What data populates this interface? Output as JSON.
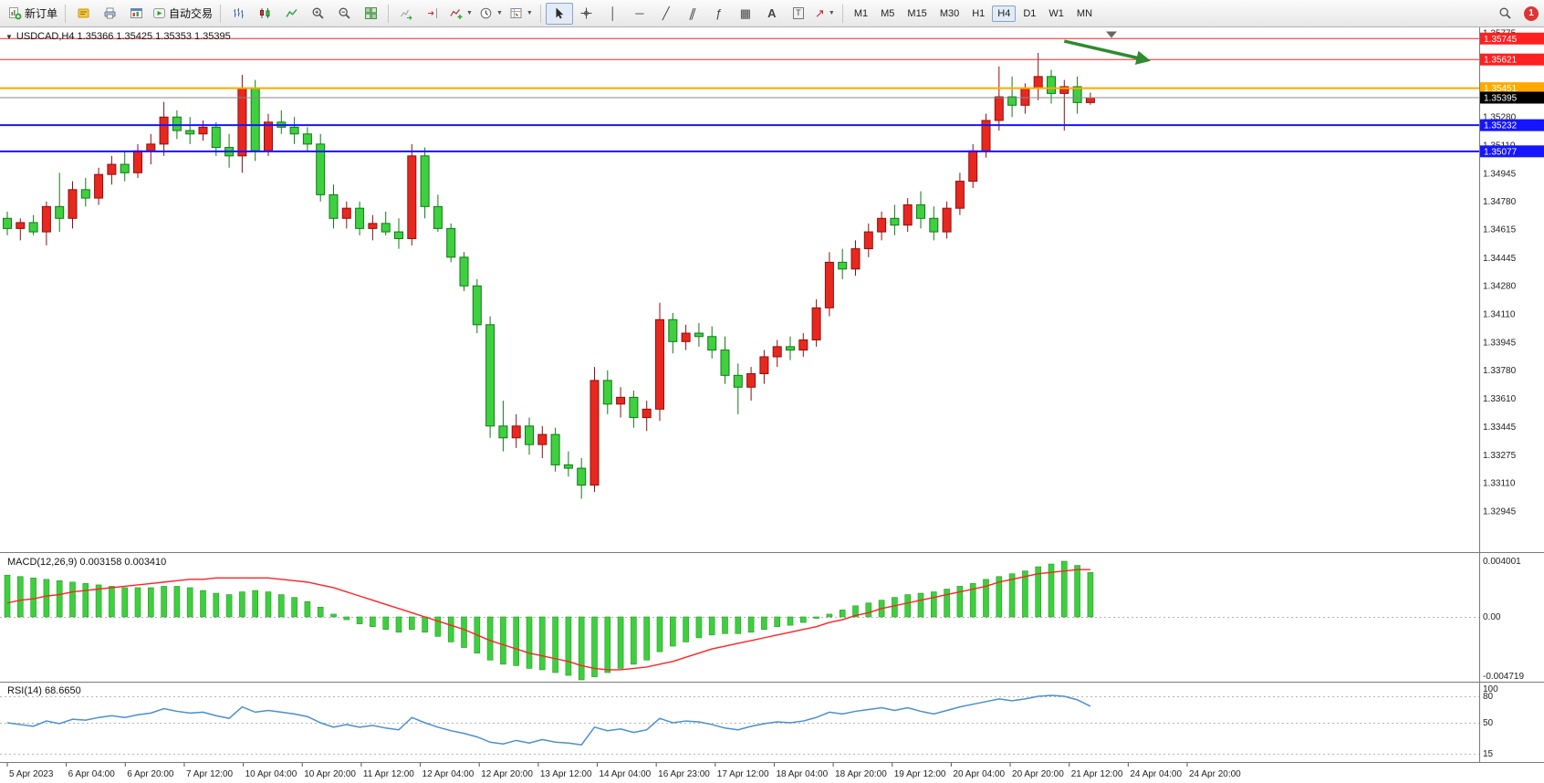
{
  "toolbar": {
    "new_order": "新订单",
    "auto_trading": "自动交易",
    "timeframes": [
      "M1",
      "M5",
      "M15",
      "M30",
      "H1",
      "H4",
      "D1",
      "W1",
      "MN"
    ],
    "active_timeframe": "H4",
    "badge_count": "1"
  },
  "chart": {
    "symbol_line": "USDCAD,H4 1.35366 1.35425 1.35353 1.35395",
    "macd_label": "MACD(12,26,9) 0.003158 0.003410",
    "rsi_label": "RSI(14) 68.6650"
  },
  "chart_data": [
    {
      "type": "candlestick",
      "symbol": "USDCAD",
      "timeframe": "H4",
      "current_bar": {
        "open": 1.35366,
        "high": 1.35425,
        "low": 1.35353,
        "close": 1.35395
      },
      "bid": 1.35395,
      "ylim": [
        1.327,
        1.35795
      ],
      "up_color": "#e8281e",
      "up_stroke": "#8f0f0f",
      "down_color": "#3fd03f",
      "down_stroke": "#0f7a16",
      "ohlc": [
        [
          1.3468,
          1.3472,
          1.3458,
          1.3462
        ],
        [
          1.3462,
          1.3468,
          1.3455,
          1.34655
        ],
        [
          1.34655,
          1.347,
          1.3458,
          1.346
        ],
        [
          1.346,
          1.3478,
          1.3452,
          1.3475
        ],
        [
          1.3475,
          1.3495,
          1.346,
          1.3468
        ],
        [
          1.3468,
          1.349,
          1.3462,
          1.3485
        ],
        [
          1.3485,
          1.3492,
          1.3475,
          1.348
        ],
        [
          1.348,
          1.3498,
          1.3476,
          1.3494
        ],
        [
          1.3494,
          1.3505,
          1.3488,
          1.35
        ],
        [
          1.35,
          1.3508,
          1.349,
          1.3495
        ],
        [
          1.3495,
          1.3512,
          1.3492,
          1.3508
        ],
        [
          1.3508,
          1.3518,
          1.35,
          1.3512
        ],
        [
          1.3512,
          1.3537,
          1.3505,
          1.3528
        ],
        [
          1.3528,
          1.3532,
          1.3515,
          1.352
        ],
        [
          1.352,
          1.3528,
          1.3512,
          1.3518
        ],
        [
          1.3518,
          1.3526,
          1.3514,
          1.3522
        ],
        [
          1.3522,
          1.3525,
          1.3505,
          1.351
        ],
        [
          1.351,
          1.3518,
          1.3498,
          1.3505
        ],
        [
          1.3505,
          1.3553,
          1.3495,
          1.3545
        ],
        [
          1.3545,
          1.355,
          1.3502,
          1.3508
        ],
        [
          1.3508,
          1.353,
          1.3505,
          1.3525
        ],
        [
          1.3525,
          1.3532,
          1.3518,
          1.3522
        ],
        [
          1.3522,
          1.3528,
          1.3512,
          1.3518
        ],
        [
          1.3518,
          1.3522,
          1.3508,
          1.3512
        ],
        [
          1.3512,
          1.3518,
          1.3478,
          1.3482
        ],
        [
          1.3482,
          1.3488,
          1.3462,
          1.3468
        ],
        [
          1.3468,
          1.3478,
          1.3462,
          1.3474
        ],
        [
          1.3474,
          1.3478,
          1.3458,
          1.3462
        ],
        [
          1.3462,
          1.347,
          1.3455,
          1.3465
        ],
        [
          1.3465,
          1.3472,
          1.3458,
          1.346
        ],
        [
          1.346,
          1.3468,
          1.345,
          1.3456
        ],
        [
          1.3456,
          1.3512,
          1.3452,
          1.3505
        ],
        [
          1.3505,
          1.351,
          1.3468,
          1.3475
        ],
        [
          1.3475,
          1.3482,
          1.346,
          1.3462
        ],
        [
          1.3462,
          1.3465,
          1.3442,
          1.3445
        ],
        [
          1.3445,
          1.3448,
          1.3425,
          1.3428
        ],
        [
          1.3428,
          1.3432,
          1.34,
          1.3405
        ],
        [
          1.3405,
          1.341,
          1.3338,
          1.3345
        ],
        [
          1.3345,
          1.336,
          1.333,
          1.3338
        ],
        [
          1.3338,
          1.3352,
          1.3332,
          1.3345
        ],
        [
          1.3345,
          1.335,
          1.3328,
          1.3334
        ],
        [
          1.3334,
          1.3345,
          1.3326,
          1.334
        ],
        [
          1.334,
          1.3344,
          1.3318,
          1.3322
        ],
        [
          1.3322,
          1.333,
          1.3315,
          1.332
        ],
        [
          1.332,
          1.3326,
          1.3302,
          1.331
        ],
        [
          1.331,
          1.338,
          1.3306,
          1.3372
        ],
        [
          1.3372,
          1.3378,
          1.3352,
          1.3358
        ],
        [
          1.3358,
          1.3368,
          1.335,
          1.3362
        ],
        [
          1.3362,
          1.3366,
          1.3344,
          1.335
        ],
        [
          1.335,
          1.336,
          1.3342,
          1.3355
        ],
        [
          1.3355,
          1.3418,
          1.3348,
          1.3408
        ],
        [
          1.3408,
          1.3412,
          1.3388,
          1.3395
        ],
        [
          1.3395,
          1.3405,
          1.339,
          1.34
        ],
        [
          1.34,
          1.3406,
          1.3392,
          1.3398
        ],
        [
          1.3398,
          1.3404,
          1.3385,
          1.339
        ],
        [
          1.339,
          1.3398,
          1.337,
          1.3375
        ],
        [
          1.3375,
          1.3382,
          1.3352,
          1.3368
        ],
        [
          1.3368,
          1.338,
          1.336,
          1.3376
        ],
        [
          1.3376,
          1.339,
          1.337,
          1.3386
        ],
        [
          1.3386,
          1.3396,
          1.338,
          1.3392
        ],
        [
          1.3392,
          1.3398,
          1.3384,
          1.339
        ],
        [
          1.339,
          1.34,
          1.3386,
          1.3396
        ],
        [
          1.3396,
          1.342,
          1.3392,
          1.3415
        ],
        [
          1.3415,
          1.3448,
          1.341,
          1.3442
        ],
        [
          1.3442,
          1.345,
          1.3432,
          1.3438
        ],
        [
          1.3438,
          1.3455,
          1.3434,
          1.345
        ],
        [
          1.345,
          1.3465,
          1.3445,
          1.346
        ],
        [
          1.346,
          1.3472,
          1.3455,
          1.3468
        ],
        [
          1.3468,
          1.3476,
          1.3458,
          1.3464
        ],
        [
          1.3464,
          1.348,
          1.346,
          1.3476
        ],
        [
          1.3476,
          1.3484,
          1.3462,
          1.3468
        ],
        [
          1.3468,
          1.3475,
          1.3455,
          1.346
        ],
        [
          1.346,
          1.3478,
          1.3456,
          1.3474
        ],
        [
          1.3474,
          1.3495,
          1.347,
          1.349
        ],
        [
          1.349,
          1.3512,
          1.3486,
          1.3508
        ],
        [
          1.3508,
          1.353,
          1.3504,
          1.3526
        ],
        [
          1.3526,
          1.3558,
          1.352,
          1.354
        ],
        [
          1.354,
          1.3552,
          1.3528,
          1.3535
        ],
        [
          1.3535,
          1.3548,
          1.353,
          1.3545
        ],
        [
          1.3545,
          1.3566,
          1.3538,
          1.3552
        ],
        [
          1.3552,
          1.3556,
          1.3536,
          1.3542
        ],
        [
          1.3542,
          1.355,
          1.352,
          1.3546
        ],
        [
          1.3546,
          1.3552,
          1.353,
          1.35366
        ],
        [
          1.35366,
          1.35425,
          1.35353,
          1.35395
        ]
      ],
      "price_axis_ticks": [
        1.35775,
        1.3528,
        1.3511,
        1.34945,
        1.3478,
        1.34615,
        1.34445,
        1.3428,
        1.3411,
        1.33945,
        1.3378,
        1.3361,
        1.33445,
        1.33275,
        1.3311,
        1.32945
      ],
      "price_lines": [
        {
          "price": 1.35745,
          "color": "#ff2020",
          "width": 1,
          "label": "1.35745"
        },
        {
          "price": 1.35621,
          "color": "#ff2020",
          "width": 1,
          "label": "1.35621"
        },
        {
          "price": 1.35451,
          "color": "#ffaa00",
          "width": 2,
          "label": "1.35451"
        },
        {
          "price": 1.35232,
          "color": "#1515ff",
          "width": 2,
          "label": "1.35232"
        },
        {
          "price": 1.35077,
          "color": "#1515ff",
          "width": 2,
          "label": "1.35077"
        }
      ],
      "bid_tag_color": "#000000",
      "time_labels": [
        "5 Apr 2023",
        "6 Apr 04:00",
        "6 Apr 20:00",
        "7 Apr 12:00",
        "10 Apr 04:00",
        "10 Apr 20:00",
        "11 Apr 12:00",
        "12 Apr 04:00",
        "12 Apr 20:00",
        "13 Apr 12:00",
        "14 Apr 04:00",
        "16 Apr 23:00",
        "17 Apr 12:00",
        "18 Apr 04:00",
        "18 Apr 20:00",
        "19 Apr 12:00",
        "20 Apr 04:00",
        "20 Apr 20:00",
        "21 Apr 12:00",
        "24 Apr 04:00",
        "24 Apr 20:00"
      ],
      "arrow": {
        "start": {
          "bar": 81,
          "price": 1.3573
        },
        "end": {
          "bar": 87.3,
          "price": 1.35618
        },
        "color": "#2e8b2e"
      }
    },
    {
      "type": "bar",
      "name": "MACD",
      "params": [
        12,
        26,
        9
      ],
      "value_main": 0.003158,
      "value_signal": 0.00341,
      "histogram_color": "#3ecf3e",
      "signal_color": "#ff2222",
      "axis_labels": [
        {
          "value": 0.004001,
          "label": "0.004001"
        },
        {
          "value": 0,
          "label": "0.00"
        },
        {
          "value": -0.004719,
          "label": "-0.004719"
        }
      ],
      "histogram": [
        0.003,
        0.0029,
        0.0028,
        0.0027,
        0.0026,
        0.0025,
        0.0024,
        0.0023,
        0.0022,
        0.0021,
        0.0021,
        0.0021,
        0.0022,
        0.0022,
        0.0021,
        0.0019,
        0.0017,
        0.0016,
        0.0018,
        0.0019,
        0.0018,
        0.0016,
        0.0014,
        0.0011,
        0.0007,
        0.0002,
        -0.0002,
        -0.0005,
        -0.0007,
        -0.0009,
        -0.0011,
        -0.0009,
        -0.0011,
        -0.0014,
        -0.0018,
        -0.0022,
        -0.0026,
        -0.0031,
        -0.0034,
        -0.0035,
        -0.0037,
        -0.0038,
        -0.004,
        -0.0042,
        -0.0047,
        -0.0043,
        -0.004,
        -0.0037,
        -0.0034,
        -0.0031,
        -0.0025,
        -0.0021,
        -0.0018,
        -0.0015,
        -0.0013,
        -0.0012,
        -0.0012,
        -0.0011,
        -0.0009,
        -0.0007,
        -0.0006,
        -0.0004,
        -0.0001,
        0.0002,
        0.0005,
        0.0008,
        0.001,
        0.0012,
        0.0014,
        0.0016,
        0.0017,
        0.0018,
        0.002,
        0.0022,
        0.0024,
        0.0027,
        0.0029,
        0.0031,
        0.0033,
        0.0036,
        0.0038,
        0.004,
        0.0037,
        0.0032
      ],
      "signal": [
        0.001,
        0.0012,
        0.0013,
        0.0015,
        0.0016,
        0.0018,
        0.0019,
        0.002,
        0.0021,
        0.0022,
        0.0023,
        0.0024,
        0.0025,
        0.0026,
        0.0027,
        0.0027,
        0.0028,
        0.0028,
        0.0028,
        0.0028,
        0.0028,
        0.0027,
        0.0026,
        0.0025,
        0.0023,
        0.0021,
        0.0018,
        0.0015,
        0.0012,
        0.0009,
        0.0006,
        0.0003,
        0.0,
        -0.0003,
        -0.0006,
        -0.0009,
        -0.0013,
        -0.0017,
        -0.002,
        -0.0023,
        -0.0026,
        -0.0028,
        -0.003,
        -0.0032,
        -0.0035,
        -0.0037,
        -0.0038,
        -0.0038,
        -0.0037,
        -0.0036,
        -0.0034,
        -0.0032,
        -0.0029,
        -0.0026,
        -0.0023,
        -0.0021,
        -0.0019,
        -0.0017,
        -0.0015,
        -0.0013,
        -0.0011,
        -0.0009,
        -0.0007,
        -0.0004,
        -0.0002,
        0.0001,
        0.0003,
        0.0006,
        0.0008,
        0.001,
        0.0012,
        0.0014,
        0.0016,
        0.0018,
        0.002,
        0.0022,
        0.0025,
        0.0027,
        0.0029,
        0.0031,
        0.0032,
        0.0033,
        0.0034,
        0.0034
      ]
    },
    {
      "type": "line",
      "name": "RSI",
      "period": 14,
      "value": 68.665,
      "line_color": "#4a8fd2",
      "levels": [
        80,
        50,
        15
      ],
      "axis_labels": [
        {
          "value": 100,
          "label": "100"
        },
        {
          "value": 80,
          "label": "80"
        },
        {
          "value": 50,
          "label": "50"
        },
        {
          "value": 15,
          "label": "15"
        }
      ],
      "series": [
        50,
        48,
        46,
        52,
        49,
        54,
        53,
        56,
        58,
        56,
        59,
        61,
        66,
        63,
        61,
        62,
        58,
        55,
        68,
        62,
        64,
        62,
        60,
        57,
        50,
        45,
        48,
        45,
        47,
        44,
        42,
        56,
        50,
        45,
        41,
        38,
        34,
        28,
        26,
        30,
        27,
        31,
        28,
        27,
        25,
        45,
        41,
        43,
        39,
        42,
        55,
        50,
        52,
        51,
        48,
        44,
        42,
        46,
        49,
        51,
        50,
        52,
        56,
        62,
        60,
        63,
        65,
        67,
        64,
        67,
        63,
        60,
        64,
        68,
        71,
        74,
        77,
        75,
        77,
        80,
        81,
        80,
        76,
        68.7
      ]
    }
  ]
}
